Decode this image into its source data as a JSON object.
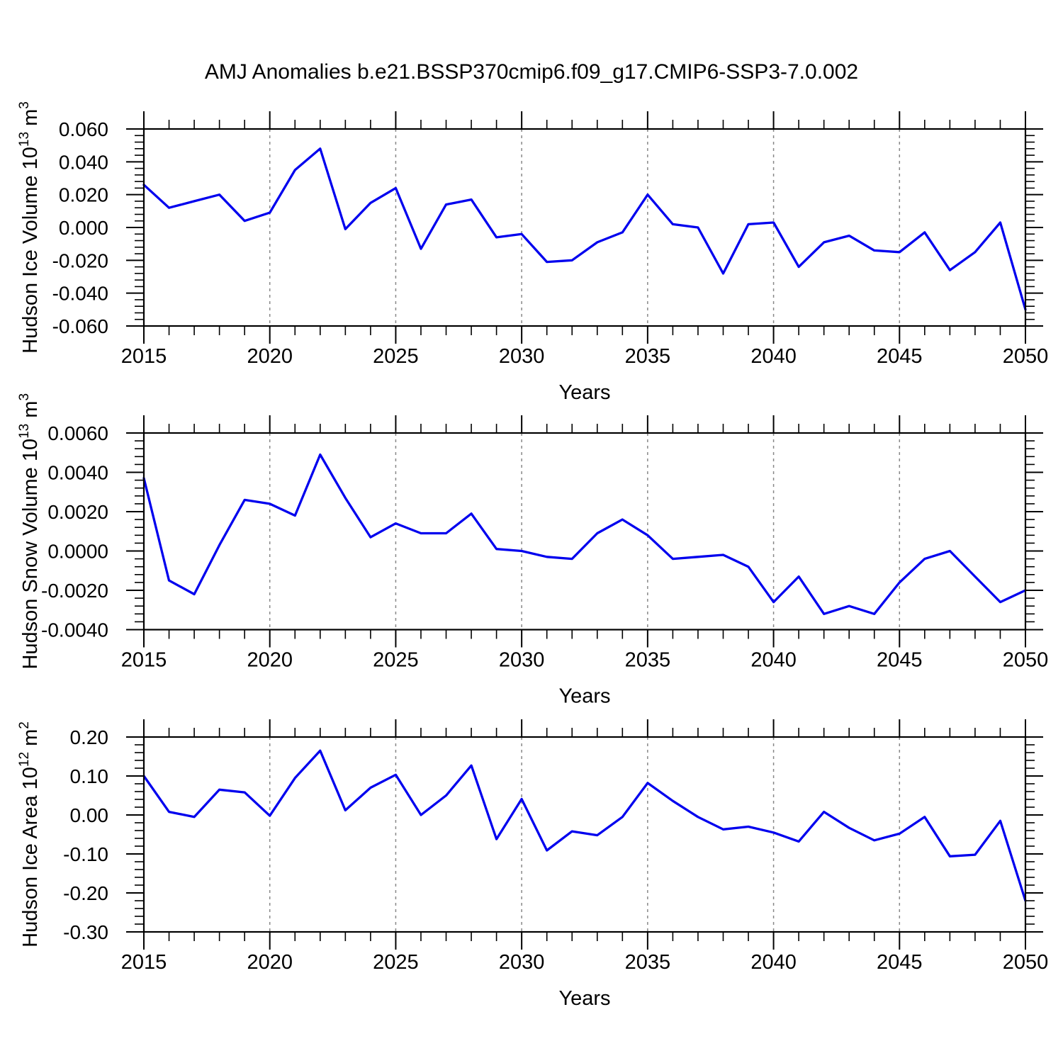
{
  "title": "AMJ Anomalies b.e21.BSSP370cmip6.f09_g17.CMIP6-SSP3-7.0.002",
  "colors": {
    "line": "#0000EE",
    "grid": "#888888",
    "axis": "#000000",
    "background": "#FFFFFF"
  },
  "chart_data": [
    {
      "type": "line",
      "name": "hudson-ice-volume",
      "title": "",
      "xlabel": "Years",
      "ylabel_parts": [
        {
          "t": "Hudson Ice Volume 10"
        },
        {
          "t": "13",
          "sup": true
        },
        {
          "t": " m"
        },
        {
          "t": "3",
          "sup": true
        }
      ],
      "xlim": [
        2015,
        2050
      ],
      "ylim": [
        -0.06,
        0.06
      ],
      "xticks": [
        2015,
        2020,
        2025,
        2030,
        2035,
        2040,
        2045,
        2050
      ],
      "xtick_labels": [
        "2015",
        "2020",
        "2025",
        "2030",
        "2035",
        "2040",
        "2045",
        "2050"
      ],
      "x_minor_step": 1,
      "yticks": [
        0.06,
        0.04,
        0.02,
        0.0,
        -0.02,
        -0.04,
        -0.06
      ],
      "ytick_labels": [
        "0.060",
        "0.040",
        "0.020",
        "0.000",
        "-0.020",
        "-0.040",
        "-0.060"
      ],
      "y_minor_step": 0.004,
      "grid_x": [
        2020,
        2025,
        2030,
        2035,
        2040,
        2045
      ],
      "grid_on": true,
      "legend": "none",
      "x": [
        2015,
        2016,
        2017,
        2018,
        2019,
        2020,
        2021,
        2022,
        2023,
        2024,
        2025,
        2026,
        2027,
        2028,
        2029,
        2030,
        2031,
        2032,
        2033,
        2034,
        2035,
        2036,
        2037,
        2038,
        2039,
        2040,
        2041,
        2042,
        2043,
        2044,
        2045,
        2046,
        2047,
        2048,
        2049,
        2050
      ],
      "values": [
        0.026,
        0.012,
        0.016,
        0.02,
        0.004,
        0.009,
        0.035,
        0.048,
        -0.001,
        0.015,
        0.024,
        -0.013,
        0.014,
        0.017,
        -0.006,
        -0.004,
        -0.021,
        -0.02,
        -0.009,
        -0.003,
        0.02,
        0.002,
        0.0,
        -0.028,
        0.002,
        0.003,
        -0.024,
        -0.009,
        -0.005,
        -0.014,
        -0.015,
        -0.003,
        -0.026,
        -0.015,
        0.003,
        -0.05
      ]
    },
    {
      "type": "line",
      "name": "hudson-snow-volume",
      "title": "",
      "xlabel": "Years",
      "ylabel_parts": [
        {
          "t": "Hudson Snow Volume 10"
        },
        {
          "t": "13",
          "sup": true
        },
        {
          "t": " m"
        },
        {
          "t": "3",
          "sup": true
        }
      ],
      "xlim": [
        2015,
        2050
      ],
      "ylim": [
        -0.004,
        0.006
      ],
      "xticks": [
        2015,
        2020,
        2025,
        2030,
        2035,
        2040,
        2045,
        2050
      ],
      "xtick_labels": [
        "2015",
        "2020",
        "2025",
        "2030",
        "2035",
        "2040",
        "2045",
        "2050"
      ],
      "x_minor_step": 1,
      "yticks": [
        0.006,
        0.004,
        0.002,
        0.0,
        -0.002,
        -0.004
      ],
      "ytick_labels": [
        "0.0060",
        "0.0040",
        "0.0020",
        "0.0000",
        "-0.0020",
        "-0.0040"
      ],
      "y_minor_step": 0.0004,
      "grid_x": [
        2020,
        2025,
        2030,
        2035,
        2040,
        2045
      ],
      "grid_on": true,
      "legend": "none",
      "x": [
        2015,
        2016,
        2017,
        2018,
        2019,
        2020,
        2021,
        2022,
        2023,
        2024,
        2025,
        2026,
        2027,
        2028,
        2029,
        2030,
        2031,
        2032,
        2033,
        2034,
        2035,
        2036,
        2037,
        2038,
        2039,
        2040,
        2041,
        2042,
        2043,
        2044,
        2045,
        2046,
        2047,
        2048,
        2049,
        2050
      ],
      "values": [
        0.0037,
        -0.0015,
        -0.0022,
        0.0003,
        0.0026,
        0.0024,
        0.0018,
        0.0049,
        0.0027,
        0.0007,
        0.0014,
        0.0009,
        0.0009,
        0.0019,
        0.0001,
        0.0,
        -0.0003,
        -0.0004,
        0.0009,
        0.0016,
        0.0008,
        -0.0004,
        -0.0003,
        -0.0002,
        -0.0008,
        -0.0026,
        -0.0013,
        -0.0032,
        -0.0028,
        -0.0032,
        -0.0016,
        -0.0004,
        0.0,
        -0.0013,
        -0.0026,
        -0.002
      ]
    },
    {
      "type": "line",
      "name": "hudson-ice-area",
      "title": "",
      "xlabel": "Years",
      "ylabel_parts": [
        {
          "t": "Hudson Ice Area 10"
        },
        {
          "t": "12",
          "sup": true
        },
        {
          "t": " m"
        },
        {
          "t": "2",
          "sup": true
        }
      ],
      "xlim": [
        2015,
        2050
      ],
      "ylim": [
        -0.3,
        0.2
      ],
      "xticks": [
        2015,
        2020,
        2025,
        2030,
        2035,
        2040,
        2045,
        2050
      ],
      "xtick_labels": [
        "2015",
        "2020",
        "2025",
        "2030",
        "2035",
        "2040",
        "2045",
        "2050"
      ],
      "x_minor_step": 1,
      "yticks": [
        0.2,
        0.1,
        0.0,
        -0.1,
        -0.2,
        -0.3
      ],
      "ytick_labels": [
        "0.20",
        "0.10",
        "0.00",
        "-0.10",
        "-0.20",
        "-0.30"
      ],
      "y_minor_step": 0.02,
      "grid_x": [
        2020,
        2025,
        2030,
        2035,
        2040,
        2045
      ],
      "grid_on": true,
      "legend": "none",
      "x": [
        2015,
        2016,
        2017,
        2018,
        2019,
        2020,
        2021,
        2022,
        2023,
        2024,
        2025,
        2026,
        2027,
        2028,
        2029,
        2030,
        2031,
        2032,
        2033,
        2034,
        2035,
        2036,
        2037,
        2038,
        2039,
        2040,
        2041,
        2042,
        2043,
        2044,
        2045,
        2046,
        2047,
        2048,
        2049,
        2050
      ],
      "values": [
        0.1,
        0.008,
        -0.005,
        0.065,
        0.058,
        -0.002,
        0.095,
        0.165,
        0.012,
        0.07,
        0.103,
        0.0,
        0.05,
        0.127,
        -0.062,
        0.041,
        -0.091,
        -0.042,
        -0.052,
        -0.005,
        0.082,
        0.036,
        -0.005,
        -0.037,
        -0.03,
        -0.045,
        -0.068,
        0.008,
        -0.033,
        -0.065,
        -0.048,
        -0.005,
        -0.106,
        -0.102,
        -0.015,
        -0.22
      ]
    }
  ]
}
